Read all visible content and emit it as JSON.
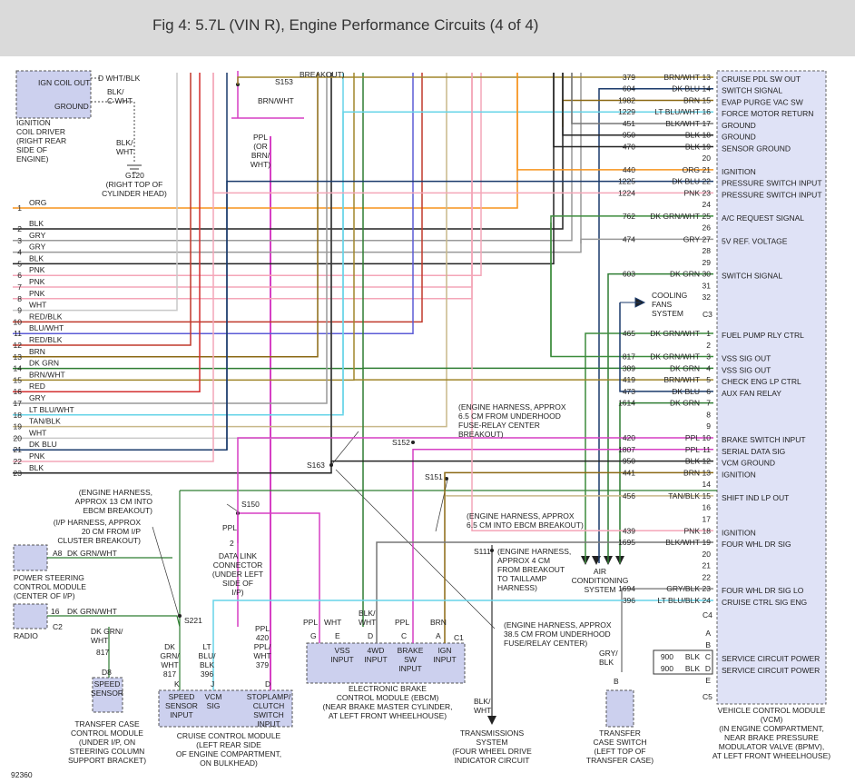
{
  "header": {
    "title": "Fig 4: 5.7L (VIN R), Engine Performance Circuits (4 of 4)"
  },
  "vcm_pins": [
    {
      "pin": "13",
      "circuit": "379",
      "color": "BRN/WHT",
      "function": "CRUISE PDL SW OUT",
      "wire": "#a0852a"
    },
    {
      "pin": "14",
      "circuit": "604",
      "color": "DK BLU",
      "function": "SWITCH SIGNAL",
      "wire": "#1a3a6b"
    },
    {
      "pin": "15",
      "circuit": "1982",
      "color": "BRN",
      "function": "EVAP PURGE VAC SW",
      "wire": "#8b6914"
    },
    {
      "pin": "16",
      "circuit": "1229",
      "color": "LT BLU/WHT",
      "function": "FORCE MOTOR RETURN",
      "wire": "#66d4e8"
    },
    {
      "pin": "17",
      "circuit": "451",
      "color": "BLK/WHT",
      "function": "GROUND",
      "wire": "#777777"
    },
    {
      "pin": "18",
      "circuit": "950",
      "color": "BLK",
      "function": "GROUND",
      "wire": "#222222"
    },
    {
      "pin": "19",
      "circuit": "470",
      "color": "BLK",
      "function": "SENSOR GROUND",
      "wire": "#222222"
    },
    {
      "pin": "20"
    },
    {
      "pin": "21",
      "circuit": "440",
      "color": "ORG",
      "function": "IGNITION",
      "wire": "#f7941d"
    },
    {
      "pin": "22",
      "circuit": "1225",
      "color": "DK BLU",
      "function": "PRESSURE SWITCH INPUT",
      "wire": "#1a3a6b"
    },
    {
      "pin": "23",
      "circuit": "1224",
      "color": "PNK",
      "function": "PRESSURE SWITCH INPUT",
      "wire": "#f4a6b8"
    },
    {
      "pin": "24"
    },
    {
      "pin": "25",
      "circuit": "762",
      "color": "DK GRN/WHT",
      "function": "A/C REQUEST SIGNAL",
      "wire": "#3c8c3c"
    },
    {
      "pin": "26"
    },
    {
      "pin": "27",
      "circuit": "474",
      "color": "GRY",
      "function": "5V REF. VOLTAGE",
      "wire": "#999999"
    },
    {
      "pin": "28"
    },
    {
      "pin": "29"
    },
    {
      "pin": "30",
      "circuit": "603",
      "color": "DK GRN",
      "function": "SWITCH SIGNAL",
      "wire": "#2e7d32"
    },
    {
      "pin": "31"
    },
    {
      "pin": "32"
    },
    {
      "pin": "1",
      "circuit": "465",
      "color": "DK GRN/WHT",
      "function": "FUEL PUMP RLY CTRL",
      "wire": "#3c8c3c"
    },
    {
      "pin": "2"
    },
    {
      "pin": "3",
      "circuit": "817",
      "color": "DK GRN/WHT",
      "function": "VSS SIG OUT",
      "wire": "#3c8c3c"
    },
    {
      "pin": "4",
      "circuit": "389",
      "color": "DK GRN",
      "function": "VSS SIG OUT",
      "wire": "#2e7d32"
    },
    {
      "pin": "5",
      "circuit": "419",
      "color": "BRN/WHT",
      "function": "CHECK ENG LP CTRL",
      "wire": "#a0852a"
    },
    {
      "pin": "6",
      "circuit": "473",
      "color": "DK BLU",
      "function": "AUX FAN RELAY",
      "wire": "#1a3a6b"
    },
    {
      "pin": "7",
      "circuit": "1614",
      "color": "DK GRN",
      "wire": "#2e7d32"
    },
    {
      "pin": "8"
    },
    {
      "pin": "9"
    },
    {
      "pin": "10",
      "circuit": "420",
      "color": "PPL",
      "function": "BRAKE SWITCH INPUT",
      "wire": "#d63fc4"
    },
    {
      "pin": "11",
      "circuit": "1807",
      "color": "PPL",
      "function": "SERIAL DATA SIG",
      "wire": "#d63fc4"
    },
    {
      "pin": "12",
      "circuit": "950",
      "color": "BLK",
      "function": "VCM GROUND",
      "wire": "#222222"
    },
    {
      "pin": "13",
      "circuit": "441",
      "color": "BRN",
      "function": "IGNITION",
      "wire": "#8b6914"
    },
    {
      "pin": "14"
    },
    {
      "pin": "15",
      "circuit": "456",
      "color": "TAN/BLK",
      "function": "SHIFT IND LP OUT",
      "wire": "#c8b88a"
    },
    {
      "pin": "16"
    },
    {
      "pin": "17"
    },
    {
      "pin": "18",
      "circuit": "439",
      "color": "PNK",
      "function": "IGNITION",
      "wire": "#f4a6b8"
    },
    {
      "pin": "19",
      "circuit": "1695",
      "color": "BLK/WHT",
      "function": "FOUR WHL DR SIG",
      "wire": "#777777"
    },
    {
      "pin": "20"
    },
    {
      "pin": "21"
    },
    {
      "pin": "22"
    },
    {
      "pin": "23",
      "circuit": "1694",
      "color": "GRY/BLK",
      "function": "FOUR WHL DR SIG LO",
      "wire": "#888888"
    },
    {
      "pin": "24",
      "circuit": "396",
      "color": "LT BLU/BLK",
      "function": "CRUISE CTRL SIG ENG",
      "wire": "#66d4e8"
    },
    {
      "pin": "A"
    },
    {
      "pin": "B"
    },
    {
      "pin": "C",
      "circuit": "900",
      "color": "BLK",
      "function": "SERVICE CIRCUIT POWER"
    },
    {
      "pin": "D",
      "circuit": "900",
      "color": "BLK",
      "function": "SERVICE CIRCUIT POWER"
    },
    {
      "pin": "E"
    }
  ],
  "left_pins": [
    {
      "pin": "1",
      "color": "ORG",
      "wire": "#f7941d"
    },
    {
      "pin": "2",
      "color": "BLK",
      "wire": "#222222"
    },
    {
      "pin": "3",
      "color": "GRY",
      "wire": "#999999"
    },
    {
      "pin": "4",
      "color": "GRY",
      "wire": "#999999"
    },
    {
      "pin": "5",
      "color": "BLK",
      "wire": "#222222"
    },
    {
      "pin": "6",
      "color": "PNK",
      "wire": "#f4a6b8"
    },
    {
      "pin": "7",
      "color": "PNK",
      "wire": "#f4a6b8"
    },
    {
      "pin": "8",
      "color": "PNK",
      "wire": "#f4a6b8"
    },
    {
      "pin": "9",
      "color": "WHT",
      "wire": "#c8c8c8"
    },
    {
      "pin": "10",
      "color": "RED/BLK",
      "wire": "#c0392b"
    },
    {
      "pin": "11",
      "color": "BLU/WHT",
      "wire": "#5b5bd6"
    },
    {
      "pin": "12",
      "color": "RED/BLK",
      "wire": "#c0392b"
    },
    {
      "pin": "13",
      "color": "BRN",
      "wire": "#8b6914"
    },
    {
      "pin": "14",
      "color": "DK GRN",
      "wire": "#2e7d32"
    },
    {
      "pin": "15",
      "color": "BRN/WHT",
      "wire": "#a0852a"
    },
    {
      "pin": "16",
      "color": "RED",
      "wire": "#d32f2f"
    },
    {
      "pin": "17",
      "color": "GRY",
      "wire": "#999999"
    },
    {
      "pin": "18",
      "color": "LT BLU/WHT",
      "wire": "#66d4e8"
    },
    {
      "pin": "19",
      "color": "TAN/BLK",
      "wire": "#c8b88a"
    },
    {
      "pin": "20",
      "color": "WHT",
      "wire": "#c8c8c8"
    },
    {
      "pin": "21",
      "color": "DK BLU",
      "wire": "#1a3a6b"
    },
    {
      "pin": "22",
      "color": "PNK",
      "wire": "#f4a6b8"
    },
    {
      "pin": "23",
      "color": "BLK",
      "wire": "#222222"
    }
  ],
  "labels": {
    "ign_coil_out": "IGN COIL OUT",
    "coil_ground": "GROUND",
    "coil_pin_d": "D  WHT/BLK",
    "coil_pin_c": [
      "BLK/",
      "C WHT"
    ],
    "coil_driver": [
      "IGNITION",
      "COIL DRIVER",
      "(RIGHT REAR",
      "SIDE OF",
      "ENGINE)"
    ],
    "blk_wht_ground": [
      "BLK/",
      "WHT"
    ],
    "g120": "G120",
    "g120_loc": [
      "(RIGHT TOP OF",
      "CYLINDER HEAD)"
    ],
    "s153": "S153",
    "breakout_top": "BREAKOUT)",
    "brn_wht_top": "BRN/WHT",
    "ppl_or": [
      "PPL",
      "(OR",
      "BRN/",
      "WHT)"
    ],
    "note_s152": [
      "(ENGINE HARNESS, APPROX",
      "6.5 CM FROM UNDERHOOD",
      "FUSE-RELAY CENTER",
      "BREAKOUT)"
    ],
    "s152": "S152",
    "s163": "S163",
    "s151": "S151",
    "note_s150": [
      "(ENGINE HARNESS,",
      "APPROX 13 CM INTO",
      "EBCM BREAKOUT)"
    ],
    "s150": "S150",
    "note_s151": [
      "(ENGINE HARNESS, APPROX",
      "6.5 CM INTO EBCM BREAKOUT)"
    ],
    "note_s221": [
      "(I/P HARNESS, APPROX",
      "20 CM FROM I/P",
      "CLUSTER BREAKOUT)"
    ],
    "dlc_ppl": "PPL",
    "dlc_pin": "2",
    "dlc": [
      "DATA LINK",
      "CONNECTOR",
      "(UNDER LEFT",
      "SIDE OF",
      "I/P)"
    ],
    "s111": "S111",
    "note_s111": [
      "(ENGINE HARNESS,",
      "APPROX 4 CM",
      "FROM BREAKOUT",
      "TO TAILLAMP",
      "HARNESS)"
    ],
    "ac_system": [
      "AIR",
      "CONDITIONING",
      "SYSTEM"
    ],
    "ps_pin": "A8",
    "ps_wire": "DK GRN/WHT",
    "ps_module": [
      "POWER STEERING",
      "CONTROL MODULE",
      "(CENTER OF I/P)"
    ],
    "radio_pin": "16",
    "radio_wire": "DK GRN/WHT",
    "radio_conn": "C2",
    "radio": "RADIO",
    "s221": "S221",
    "tc_wire": [
      "DK GRN/",
      "WHT"
    ],
    "tc_circuit": "817",
    "tc_pin": "D8",
    "speed_sensor": [
      "SPEED",
      "SENSOR"
    ],
    "tc_module": [
      "TRANSFER CASE",
      "CONTROL MODULE",
      "(UNDER I/P, ON",
      "STEERING COLUMN",
      "SUPPORT BRACKET)"
    ],
    "ccm_wire_k": [
      "DK",
      "GRN/",
      "WHT",
      "817"
    ],
    "ccm_wire_j": [
      "LT",
      "BLU/",
      "BLK",
      "396"
    ],
    "ccm_wire_d": [
      "PPL",
      "420",
      "PPL/",
      "WHT",
      "379"
    ],
    "ccm_pin_k": "K",
    "ccm_pin_j": "J",
    "ccm_pin_d": "D",
    "ccm_speed": [
      "SPEED",
      "SENSOR",
      "INPUT"
    ],
    "ccm_vcm": [
      "VCM",
      "SIG"
    ],
    "ccm_stop": [
      "STOPLAMP/",
      "CLUTCH",
      "SWITCH",
      "INPUT"
    ],
    "ccm": [
      "CRUISE CONTROL MODULE",
      "(LEFT REAR SIDE",
      "OF ENGINE COMPARTMENT,",
      "ON BULKHEAD)"
    ],
    "ebcm_w_g": "PPL",
    "ebcm_w_e": "WHT",
    "ebcm_w_d": [
      "BLK/",
      "WHT"
    ],
    "ebcm_w_c": "PPL",
    "ebcm_w_a": "BRN",
    "ebcm_p_g": "G",
    "ebcm_p_e": "E",
    "ebcm_p_d": "D",
    "ebcm_p_c": "C",
    "ebcm_p_a": "A",
    "ebcm_c1": "C1",
    "ebcm_vss": [
      "VSS",
      "INPUT"
    ],
    "ebcm_4wd": [
      "4WD",
      "INPUT"
    ],
    "ebcm_brake": [
      "BRAKE",
      "SW",
      "INPUT"
    ],
    "ebcm_ign": [
      "IGN",
      "INPUT"
    ],
    "ebcm": [
      "ELECTRONIC BRAKE",
      "CONTROL MODULE (EBCM)",
      "(NEAR BRAKE MASTER CYLINDER,",
      "AT LEFT FRONT WHEELHOUSE)"
    ],
    "note_385": [
      "(ENGINE HARNESS, APPROX",
      "38.5 CM FROM UNDERHOOD",
      "FUSE/RELAY CENTER)"
    ],
    "trans_wire": [
      "BLK/",
      "WHT"
    ],
    "trans": [
      "TRANSMISSIONS",
      "SYSTEM",
      "(FOUR WHEEL DRIVE",
      "INDICATOR CIRCUIT"
    ],
    "tcs_wire": [
      "GRY/",
      "BLK"
    ],
    "tcs_pin": "B",
    "tcs": [
      "TRANSFER",
      "CASE SWITCH",
      "(LEFT TOP OF",
      "TRANSFER CASE)"
    ],
    "vcm": [
      "VEHICLE CONTROL MODULE",
      "(VCM)",
      "(IN ENGINE COMPARTMENT,",
      "NEAR BRAKE PRESSURE",
      "MODULATOR VALVE (BPMV),",
      "AT LEFT FRONT WHEELHOUSE)"
    ],
    "cooling": [
      "COOLING",
      "FANS",
      "SYSTEM"
    ],
    "conn_c3": "C3",
    "conn_c4": "C4",
    "conn_c5": "C5",
    "fig_no": "92360"
  }
}
